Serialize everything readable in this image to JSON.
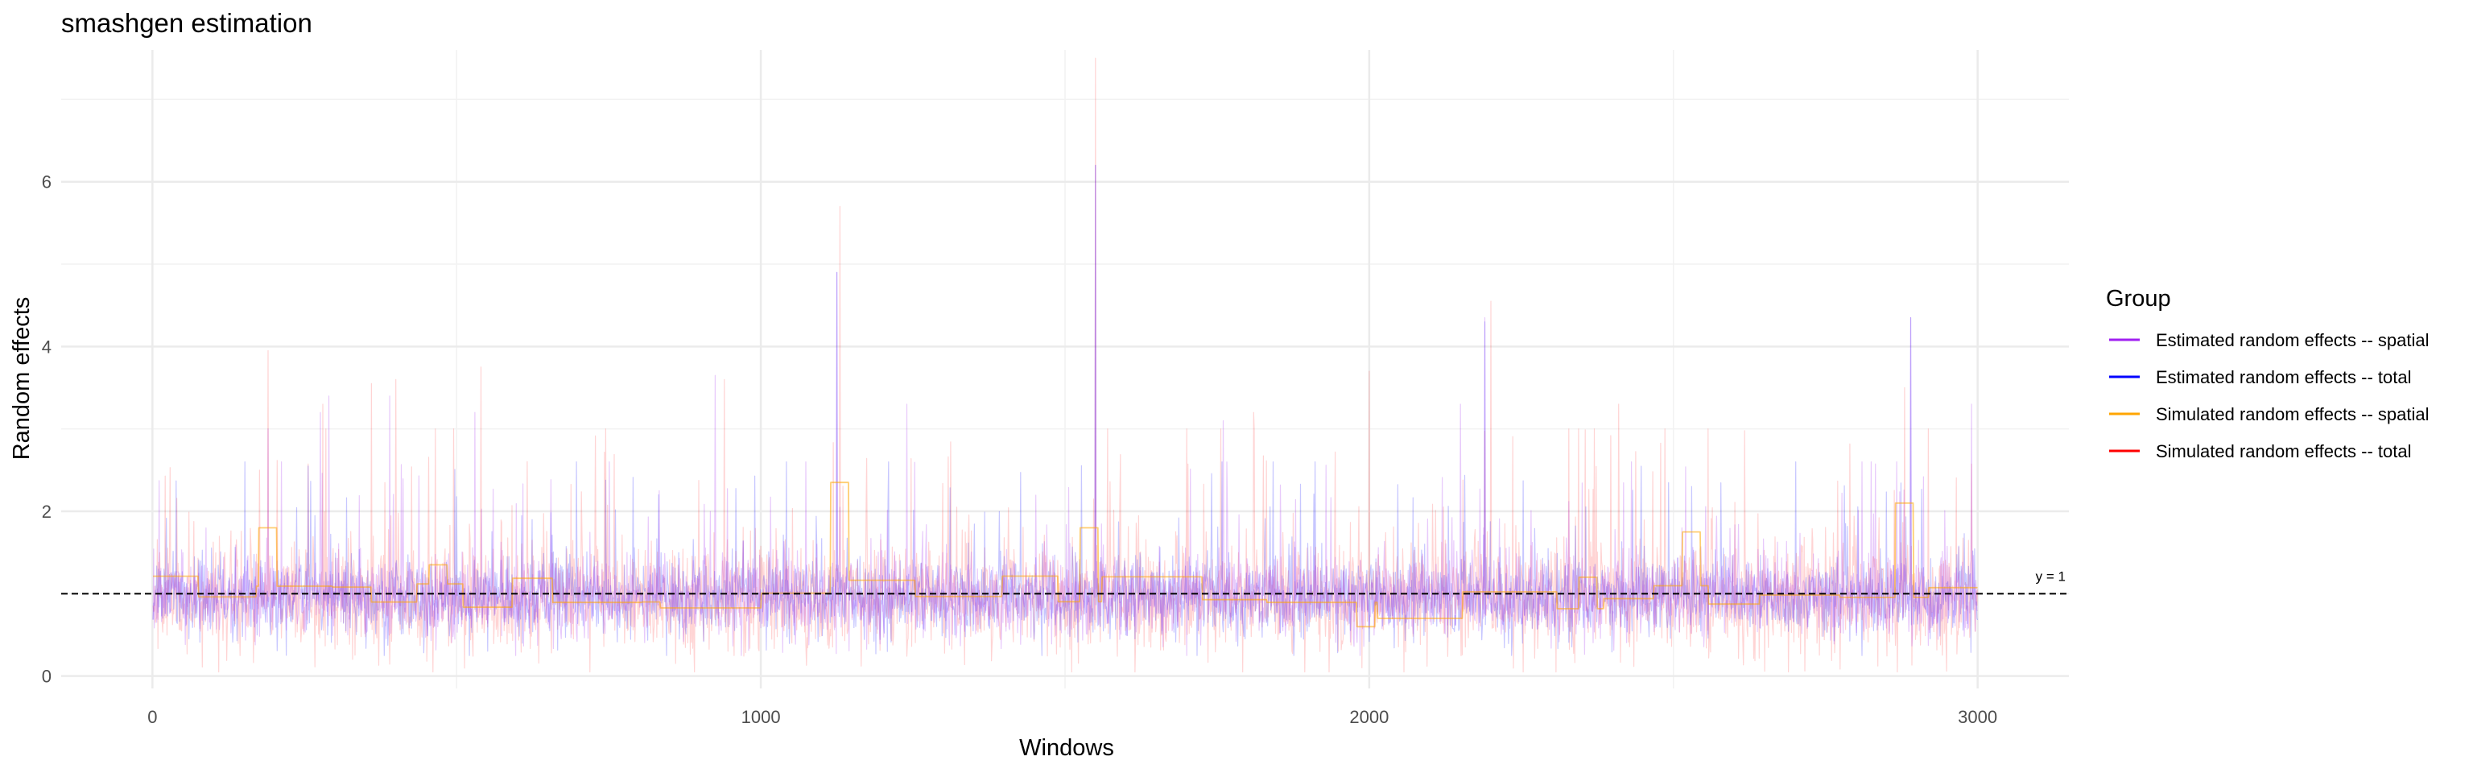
{
  "chart_data": {
    "type": "line",
    "title": "smashgen estimation",
    "xlabel": "Windows",
    "ylabel": "Random effects",
    "xlim": [
      -150,
      3150
    ],
    "ylim": [
      -0.15,
      7.6
    ],
    "x_ticks": [
      0,
      1000,
      2000,
      3000
    ],
    "x_tick_labels": [
      "0",
      "1000",
      "2000",
      "3000"
    ],
    "y_ticks": [
      0,
      2,
      4,
      6
    ],
    "y_tick_labels": [
      "0",
      "2",
      "4",
      "6"
    ],
    "grid": true,
    "legend": {
      "title": "Group",
      "placement": "right",
      "entries": [
        {
          "label": "Estimated random effects -- spatial",
          "color": "#A020F0"
        },
        {
          "label": "Estimated random effects -- total",
          "color": "#0000FF"
        },
        {
          "label": "Simulated random effects -- spatial",
          "color": "#FFA500"
        },
        {
          "label": "Simulated random effects -- total",
          "color": "#FF0000"
        }
      ]
    },
    "reference_line": {
      "y": 1,
      "label": "y = 1",
      "style": "dashed"
    },
    "x_range": [
      1,
      3000
    ],
    "series": [
      {
        "name": "Estimated random effects -- spatial",
        "color": "#A020F0",
        "peaks": [
          [
            190,
            3.0
          ],
          [
            276,
            3.2
          ],
          [
            290,
            3.4
          ],
          [
            390,
            3.4
          ],
          [
            530,
            3.2
          ],
          [
            925,
            3.65
          ],
          [
            1125,
            4.9
          ],
          [
            1240,
            3.3
          ],
          [
            1550,
            6.2
          ],
          [
            1760,
            3.1
          ],
          [
            2150,
            3.3
          ],
          [
            2190,
            4.35
          ],
          [
            2890,
            4.35
          ],
          [
            2990,
            3.3
          ]
        ]
      },
      {
        "name": "Estimated random effects -- total",
        "color": "#0000FF",
        "peaks": [
          [
            1125,
            4.9
          ],
          [
            1550,
            6.2
          ],
          [
            2190,
            4.3
          ],
          [
            2890,
            4.35
          ]
        ]
      },
      {
        "name": "Simulated random effects -- spatial",
        "color": "#FFA500",
        "peaks": [
          [
            190,
            1.8
          ],
          [
            470,
            1.35
          ],
          [
            820,
            0.9
          ],
          [
            1130,
            2.35
          ],
          [
            1540,
            1.8
          ],
          [
            1995,
            0.6
          ],
          [
            2360,
            1.2
          ],
          [
            2530,
            1.75
          ],
          [
            2880,
            2.1
          ]
        ]
      },
      {
        "name": "Simulated random effects -- total",
        "color": "#FF0000",
        "peaks": [
          [
            190,
            3.95
          ],
          [
            280,
            3.3
          ],
          [
            360,
            3.55
          ],
          [
            400,
            3.6
          ],
          [
            540,
            3.75
          ],
          [
            940,
            3.6
          ],
          [
            1130,
            5.7
          ],
          [
            1550,
            7.5
          ],
          [
            1810,
            3.2
          ],
          [
            2000,
            3.7
          ],
          [
            2200,
            4.55
          ],
          [
            2410,
            3.3
          ],
          [
            2880,
            3.5
          ]
        ]
      }
    ]
  }
}
